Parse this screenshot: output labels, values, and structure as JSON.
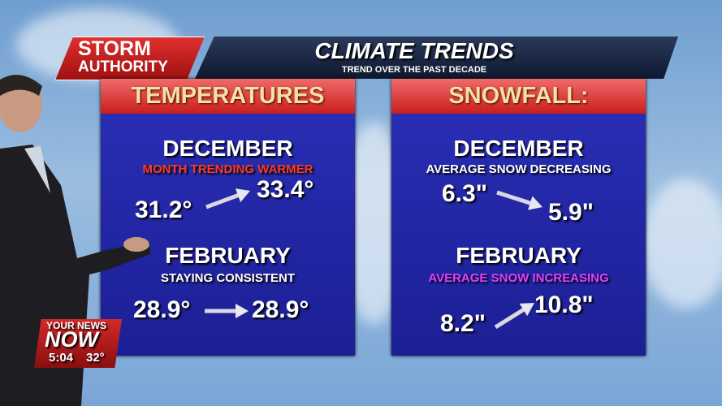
{
  "logo": {
    "line1": "STORM",
    "line2": "AUTHORITY"
  },
  "header": {
    "title": "CLIMATE TRENDS",
    "subtitle": "TREND OVER THE PAST DECADE"
  },
  "panels": [
    {
      "title": "TEMPERATURES",
      "sections": [
        {
          "month": "DECEMBER",
          "note": "MONTH TRENDING WARMER",
          "from": "31.2°",
          "to": "33.4°"
        },
        {
          "month": "FEBRUARY",
          "note": "STAYING CONSISTENT",
          "from": "28.9°",
          "to": "28.9°"
        }
      ]
    },
    {
      "title": "SNOWFALL:",
      "sections": [
        {
          "month": "DECEMBER",
          "note": "AVERAGE SNOW DECREASING",
          "from": "6.3\"",
          "to": "5.9\""
        },
        {
          "month": "FEBRUARY",
          "note": "AVERAGE SNOW INCREASING",
          "from": "8.2\"",
          "to": "10.8\""
        }
      ]
    }
  ],
  "bug": {
    "line1": "YOUR NEWS",
    "line2": "NOW",
    "time": "5:04",
    "temp": "32°"
  }
}
